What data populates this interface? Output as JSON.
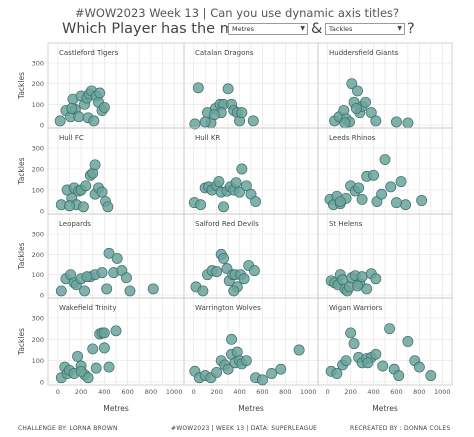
{
  "header": {
    "line1": "#WOW2023 Week 13  |  Can you use dynamic axis titles?",
    "question_prefix": "Which Player has the most",
    "connector": "&",
    "question_suffix": "?",
    "x_dropdown": {
      "selected": "Metres"
    },
    "y_dropdown": {
      "selected": "Tackles"
    }
  },
  "footer": {
    "left": "CHALLENGE BY: LORNA BROWN",
    "center": "#WOW2023  |  WEEK 13  |  DATA: SUPERLEAGUE",
    "right": "RECREATED BY : DONNA COLES"
  },
  "colors": {
    "point": "#6aa39c",
    "point_stroke": "#3d6e69",
    "grid": "#e3e3e3",
    "border": "#c9c9c9"
  },
  "chart_data": {
    "type": "scatter",
    "layout": "small-multiples 4x3",
    "xlabel": "Metres",
    "ylabel": "Tackles",
    "xlim": [
      -50,
      1050
    ],
    "ylim": [
      0,
      300
    ],
    "xticks": [
      0,
      100,
      200,
      300,
      400,
      500,
      600,
      700,
      800,
      900,
      1000
    ],
    "yticks": [
      0,
      100,
      200,
      300
    ],
    "panels": [
      {
        "team": "Castleford Tigers",
        "points": [
          [
            20,
            20
          ],
          [
            70,
            70
          ],
          [
            110,
            40
          ],
          [
            130,
            125
          ],
          [
            150,
            75
          ],
          [
            180,
            40
          ],
          [
            200,
            140
          ],
          [
            230,
            100
          ],
          [
            250,
            130
          ],
          [
            270,
            150
          ],
          [
            290,
            165
          ],
          [
            330,
            140
          ],
          [
            350,
            110
          ],
          [
            380,
            70
          ],
          [
            400,
            85
          ],
          [
            120,
            80
          ],
          [
            260,
            35
          ],
          [
            360,
            155
          ],
          [
            310,
            20
          ]
        ]
      },
      {
        "team": "Catalan Dragons",
        "points": [
          [
            10,
            5
          ],
          [
            40,
            180
          ],
          [
            120,
            60
          ],
          [
            150,
            10
          ],
          [
            190,
            80
          ],
          [
            230,
            100
          ],
          [
            260,
            100
          ],
          [
            300,
            175
          ],
          [
            330,
            100
          ],
          [
            350,
            70
          ],
          [
            380,
            60
          ],
          [
            400,
            20
          ],
          [
            420,
            60
          ],
          [
            520,
            20
          ],
          [
            240,
            60
          ],
          [
            180,
            50
          ],
          [
            100,
            15
          ]
        ]
      },
      {
        "team": "Huddersfield Giants",
        "points": [
          [
            60,
            20
          ],
          [
            100,
            40
          ],
          [
            140,
            70
          ],
          [
            160,
            30
          ],
          [
            190,
            15
          ],
          [
            210,
            200
          ],
          [
            230,
            110
          ],
          [
            260,
            165
          ],
          [
            280,
            60
          ],
          [
            300,
            90
          ],
          [
            330,
            110
          ],
          [
            380,
            60
          ],
          [
            420,
            20
          ],
          [
            600,
            15
          ],
          [
            250,
            80
          ],
          [
            150,
            10
          ],
          [
            700,
            10
          ]
        ]
      },
      {
        "team": "Hull FC",
        "points": [
          [
            30,
            30
          ],
          [
            80,
            100
          ],
          [
            120,
            60
          ],
          [
            140,
            110
          ],
          [
            160,
            30
          ],
          [
            180,
            95
          ],
          [
            200,
            100
          ],
          [
            220,
            20
          ],
          [
            240,
            120
          ],
          [
            280,
            170
          ],
          [
            300,
            180
          ],
          [
            320,
            80
          ],
          [
            350,
            110
          ],
          [
            380,
            90
          ],
          [
            410,
            45
          ],
          [
            430,
            20
          ],
          [
            320,
            220
          ],
          [
            100,
            25
          ]
        ]
      },
      {
        "team": "Hull KR",
        "points": [
          [
            5,
            40
          ],
          [
            60,
            30
          ],
          [
            100,
            110
          ],
          [
            130,
            115
          ],
          [
            160,
            100
          ],
          [
            200,
            120
          ],
          [
            220,
            140
          ],
          [
            240,
            90
          ],
          [
            260,
            20
          ],
          [
            290,
            95
          ],
          [
            320,
            115
          ],
          [
            350,
            100
          ],
          [
            370,
            135
          ],
          [
            400,
            90
          ],
          [
            420,
            200
          ],
          [
            460,
            120
          ],
          [
            500,
            80
          ],
          [
            540,
            45
          ]
        ]
      },
      {
        "team": "Leeds Rhinos",
        "points": [
          [
            20,
            55
          ],
          [
            50,
            30
          ],
          [
            80,
            70
          ],
          [
            110,
            35
          ],
          [
            160,
            60
          ],
          [
            200,
            120
          ],
          [
            240,
            95
          ],
          [
            270,
            110
          ],
          [
            300,
            55
          ],
          [
            340,
            165
          ],
          [
            400,
            170
          ],
          [
            430,
            45
          ],
          [
            470,
            80
          ],
          [
            500,
            245
          ],
          [
            550,
            115
          ],
          [
            640,
            140
          ],
          [
            680,
            30
          ],
          [
            600,
            40
          ],
          [
            820,
            50
          ],
          [
            110,
            45
          ]
        ]
      },
      {
        "team": "Leopards",
        "points": [
          [
            30,
            20
          ],
          [
            70,
            80
          ],
          [
            110,
            100
          ],
          [
            140,
            60
          ],
          [
            160,
            50
          ],
          [
            200,
            80
          ],
          [
            230,
            20
          ],
          [
            280,
            90
          ],
          [
            320,
            100
          ],
          [
            380,
            110
          ],
          [
            420,
            30
          ],
          [
            440,
            205
          ],
          [
            480,
            110
          ],
          [
            510,
            180
          ],
          [
            550,
            120
          ],
          [
            590,
            85
          ],
          [
            620,
            20
          ],
          [
            820,
            30
          ],
          [
            250,
            90
          ]
        ]
      },
      {
        "team": "Salford Red Devils",
        "points": [
          [
            20,
            40
          ],
          [
            80,
            20
          ],
          [
            120,
            100
          ],
          [
            160,
            120
          ],
          [
            200,
            115
          ],
          [
            240,
            200
          ],
          [
            260,
            180
          ],
          [
            290,
            130
          ],
          [
            310,
            70
          ],
          [
            340,
            100
          ],
          [
            360,
            100
          ],
          [
            380,
            40
          ],
          [
            410,
            100
          ],
          [
            440,
            80
          ],
          [
            480,
            145
          ],
          [
            530,
            120
          ],
          [
            350,
            20
          ]
        ]
      },
      {
        "team": "St Helens",
        "points": [
          [
            30,
            70
          ],
          [
            60,
            60
          ],
          [
            90,
            50
          ],
          [
            110,
            100
          ],
          [
            130,
            75
          ],
          [
            150,
            30
          ],
          [
            170,
            20
          ],
          [
            190,
            40
          ],
          [
            210,
            85
          ],
          [
            240,
            95
          ],
          [
            280,
            55
          ],
          [
            300,
            90
          ],
          [
            340,
            30
          ],
          [
            380,
            105
          ],
          [
            420,
            80
          ],
          [
            260,
            45
          ]
        ]
      },
      {
        "team": "Wakefield Trinity",
        "points": [
          [
            30,
            20
          ],
          [
            60,
            70
          ],
          [
            80,
            40
          ],
          [
            100,
            55
          ],
          [
            140,
            40
          ],
          [
            170,
            120
          ],
          [
            200,
            75
          ],
          [
            230,
            35
          ],
          [
            260,
            20
          ],
          [
            300,
            155
          ],
          [
            330,
            65
          ],
          [
            360,
            225
          ],
          [
            380,
            230
          ],
          [
            400,
            160
          ],
          [
            440,
            70
          ],
          [
            500,
            240
          ],
          [
            400,
            230
          ],
          [
            200,
            50
          ]
        ]
      },
      {
        "team": "Warrington Wolves",
        "points": [
          [
            10,
            50
          ],
          [
            50,
            20
          ],
          [
            100,
            30
          ],
          [
            150,
            20
          ],
          [
            200,
            45
          ],
          [
            240,
            100
          ],
          [
            270,
            80
          ],
          [
            300,
            60
          ],
          [
            330,
            130
          ],
          [
            360,
            90
          ],
          [
            380,
            140
          ],
          [
            400,
            100
          ],
          [
            420,
            85
          ],
          [
            460,
            100
          ],
          [
            540,
            20
          ],
          [
            600,
            10
          ],
          [
            680,
            40
          ],
          [
            760,
            60
          ],
          [
            920,
            150
          ],
          [
            330,
            200
          ]
        ]
      },
      {
        "team": "Wigan Warriors",
        "points": [
          [
            30,
            50
          ],
          [
            80,
            40
          ],
          [
            130,
            80
          ],
          [
            160,
            100
          ],
          [
            200,
            230
          ],
          [
            230,
            180
          ],
          [
            270,
            115
          ],
          [
            300,
            90
          ],
          [
            340,
            110
          ],
          [
            380,
            115
          ],
          [
            420,
            130
          ],
          [
            480,
            75
          ],
          [
            540,
            250
          ],
          [
            580,
            60
          ],
          [
            620,
            30
          ],
          [
            700,
            190
          ],
          [
            760,
            100
          ],
          [
            800,
            70
          ],
          [
            900,
            30
          ],
          [
            350,
            90
          ]
        ]
      }
    ]
  }
}
